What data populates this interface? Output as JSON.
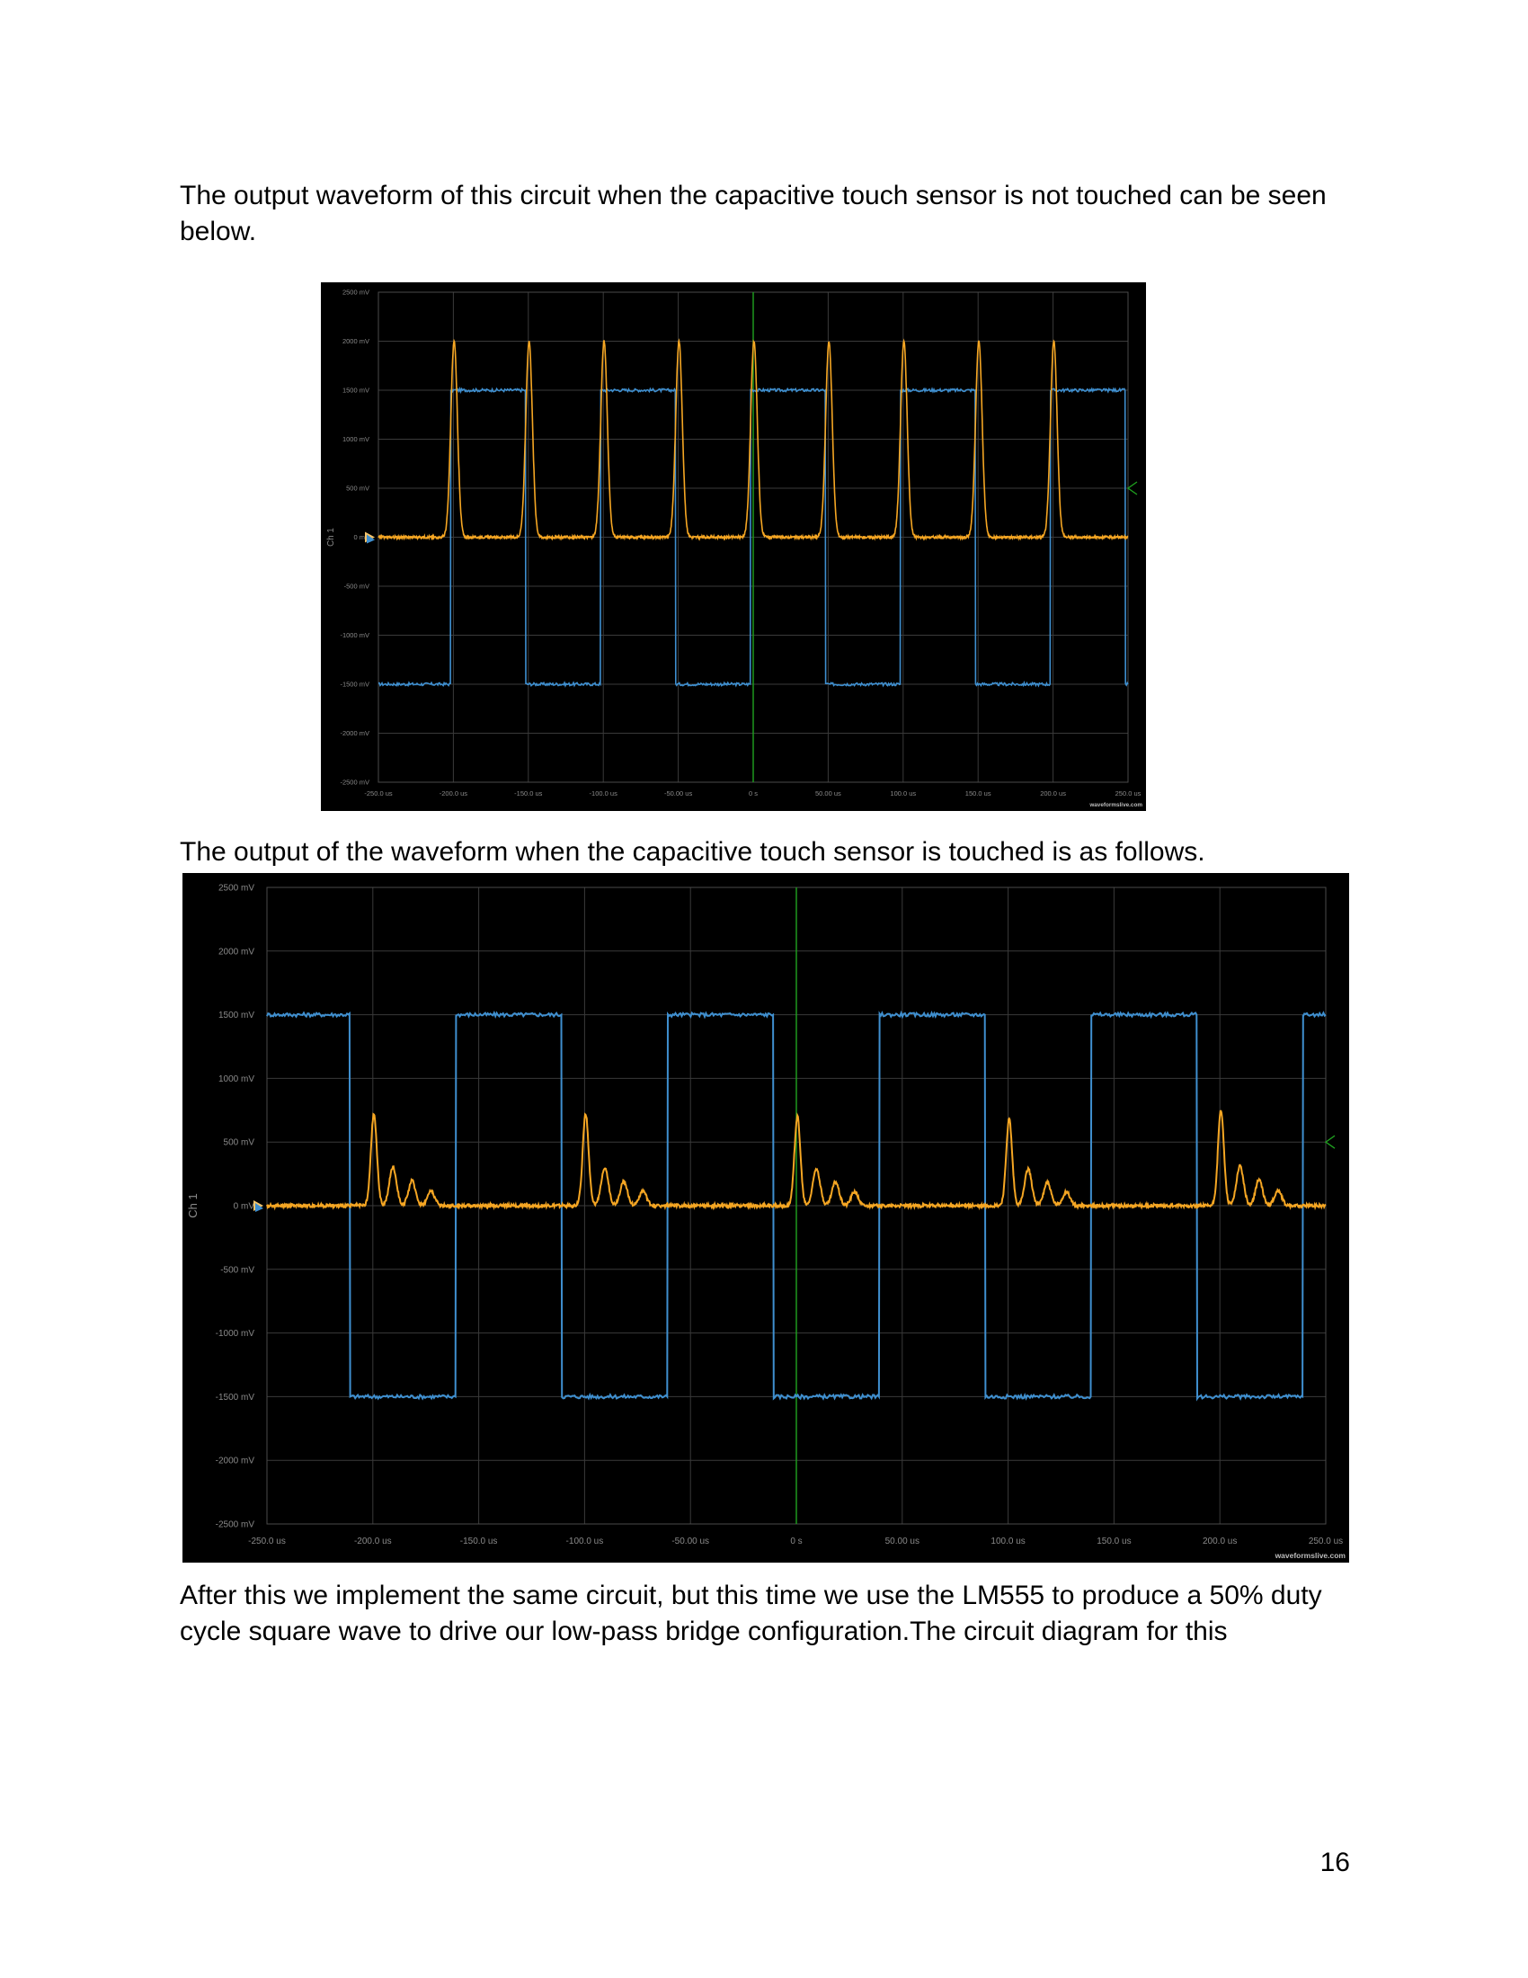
{
  "paragraphs": {
    "intro": "The output waveform of this circuit when the capacitive touch sensor is not touched can be seen below.",
    "touched_intro": "The output of the waveform when the capacitive touch sensor is touched is as follows.",
    "followup": "After this we implement the same circuit, but this time we use the LM555 to produce a 50% duty cycle square wave to drive our low-pass bridge configuration.The circuit diagram for this"
  },
  "page_number": "16",
  "chart_data": [
    {
      "type": "line",
      "title": "",
      "ylabel": "Ch 1",
      "xlabel": "",
      "watermark": "waveformslive.com",
      "xlim": [
        -250,
        250
      ],
      "ylim": [
        -2500,
        2500
      ],
      "grid": true,
      "y_tick_labels": [
        "2500 mV",
        "2000 mV",
        "1500 mV",
        "1000 mV",
        "500 mV",
        "0 mV",
        "-500 mV",
        "-1000 mV",
        "-1500 mV",
        "-2000 mV",
        "-2500 mV"
      ],
      "x_tick_labels": [
        "-250.0 us",
        "-200.0 us",
        "-150.0 us",
        "-100.0 us",
        "-50.00 us",
        "0 s",
        "50.00 us",
        "100.0 us",
        "150.0 us",
        "200.0 us",
        "250.0 us"
      ],
      "colors": {
        "square": "#3f8fcf",
        "pulse": "#f5a623",
        "trigger": "#1fa21f",
        "grid": "#3a3a3a",
        "text": "#8a8a8a"
      },
      "series": [
        {
          "type": "square",
          "low": -1500,
          "high": 1500,
          "edges": [
            -202,
            -152,
            -102,
            -52,
            -2,
            48,
            98,
            148,
            198,
            248
          ],
          "start_high": false
        },
        {
          "type": "pulses",
          "baseline": 0,
          "peaks": [
            {
              "t": -200,
              "v": 2000
            },
            {
              "t": -150,
              "v": 2000
            },
            {
              "t": -100,
              "v": 2000
            },
            {
              "t": -50,
              "v": 2000
            },
            {
              "t": 0,
              "v": 2000
            },
            {
              "t": 50,
              "v": 2000
            },
            {
              "t": 100,
              "v": 2000
            },
            {
              "t": 150,
              "v": 2000
            },
            {
              "t": 200,
              "v": 2000
            }
          ],
          "width": 2.2,
          "echo_ratios": []
        }
      ]
    },
    {
      "type": "line",
      "title": "",
      "ylabel": "Ch 1",
      "xlabel": "",
      "watermark": "waveformslive.com",
      "xlim": [
        -250,
        250
      ],
      "ylim": [
        -2500,
        2500
      ],
      "grid": true,
      "y_tick_labels": [
        "2500 mV",
        "2000 mV",
        "1500 mV",
        "1000 mV",
        "500 mV",
        "0 mV",
        "-500 mV",
        "-1000 mV",
        "-1500 mV",
        "-2000 mV",
        "-2500 mV"
      ],
      "x_tick_labels": [
        "-250.0 us",
        "-200.0 us",
        "-150.0 us",
        "-100.0 us",
        "-50.00 us",
        "0 s",
        "50.00 us",
        "100.0 us",
        "150.0 us",
        "200.0 us",
        "250.0 us"
      ],
      "colors": {
        "square": "#3f8fcf",
        "pulse": "#f5a623",
        "trigger": "#1fa21f",
        "grid": "#3a3a3a",
        "text": "#8a8a8a"
      },
      "series": [
        {
          "type": "square",
          "low": -1500,
          "high": 1500,
          "edges": [
            -211,
            -161,
            -111,
            -61,
            -11,
            39,
            89,
            139,
            189,
            239
          ],
          "start_high": true
        },
        {
          "type": "pulses",
          "baseline": 0,
          "peaks": [
            {
              "t": -200,
              "v": 720
            },
            {
              "t": -100,
              "v": 720
            },
            {
              "t": 0,
              "v": 700
            },
            {
              "t": 100,
              "v": 680
            },
            {
              "t": 200,
              "v": 750
            }
          ],
          "width": 1.4,
          "echo_ratios": [
            0.42,
            0.27,
            0.16
          ]
        }
      ]
    }
  ]
}
